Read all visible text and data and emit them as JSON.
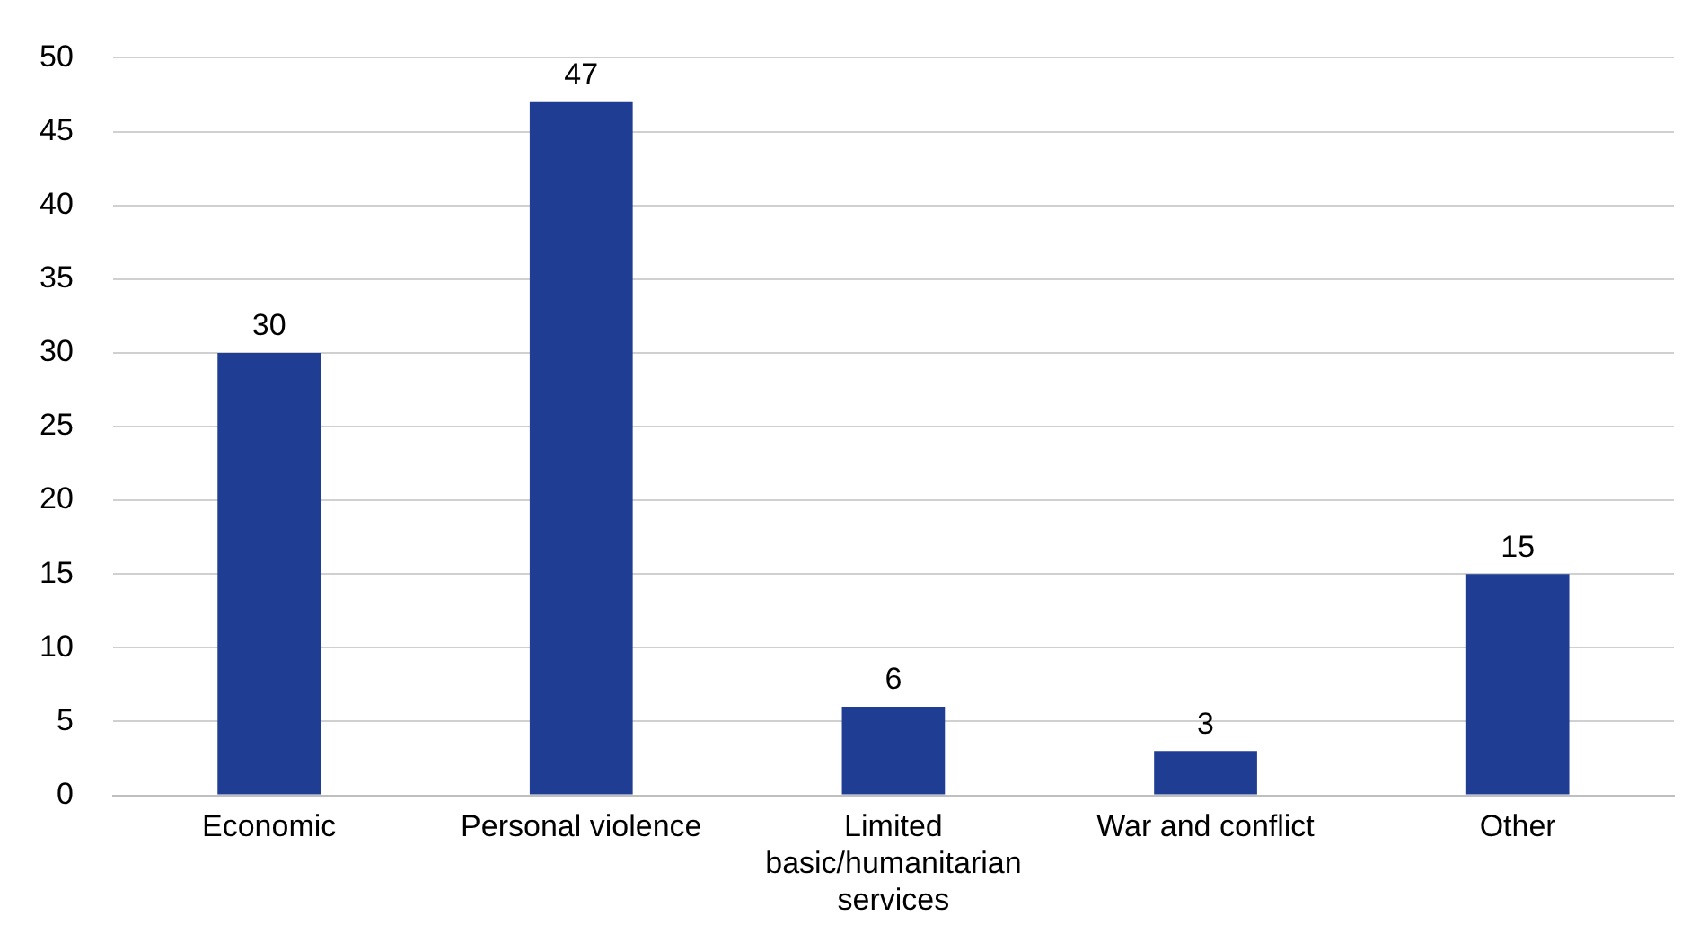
{
  "chart_data": {
    "type": "bar",
    "categories": [
      "Economic",
      "Personal violence",
      "Limited basic/humanitarian services",
      "War and conflict",
      "Other"
    ],
    "values": [
      30,
      47,
      6,
      3,
      15
    ],
    "color": "#1f3e93",
    "ylim": [
      0,
      50
    ],
    "yticks": [
      0,
      5,
      10,
      15,
      20,
      25,
      30,
      35,
      40,
      45,
      50
    ],
    "grid": "y",
    "data_labels": true
  }
}
